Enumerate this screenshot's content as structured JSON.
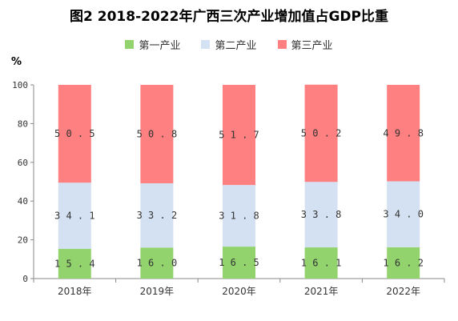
{
  "chart_data": {
    "type": "bar",
    "stacked": true,
    "title": "图2 2018-2022年广西三次产业增加值占GDP比重",
    "ylabel": "%",
    "ylim": [
      0,
      100
    ],
    "yticks": [
      0,
      20,
      40,
      60,
      80,
      100
    ],
    "categories": [
      "2018年",
      "2019年",
      "2020年",
      "2021年",
      "2022年"
    ],
    "series": [
      {
        "name": "第一产业",
        "color": "#92d36e",
        "values": [
          15.4,
          16.0,
          16.5,
          16.1,
          16.2
        ],
        "labels": [
          "15.4",
          "16.0",
          "16.5",
          "16.1",
          "16.2"
        ]
      },
      {
        "name": "第二产业",
        "color": "#d4e1f3",
        "values": [
          34.1,
          33.2,
          31.8,
          33.8,
          34.0
        ],
        "labels": [
          "34.1",
          "33.2",
          "31.8",
          "33.8",
          "34.0"
        ]
      },
      {
        "name": "第三产业",
        "color": "#fe8080",
        "values": [
          50.5,
          50.8,
          51.7,
          50.2,
          49.8
        ],
        "labels": [
          "50.5",
          "50.8",
          "51.7",
          "50.2",
          "49.8"
        ]
      }
    ],
    "legend_position": "top",
    "grid": false
  }
}
